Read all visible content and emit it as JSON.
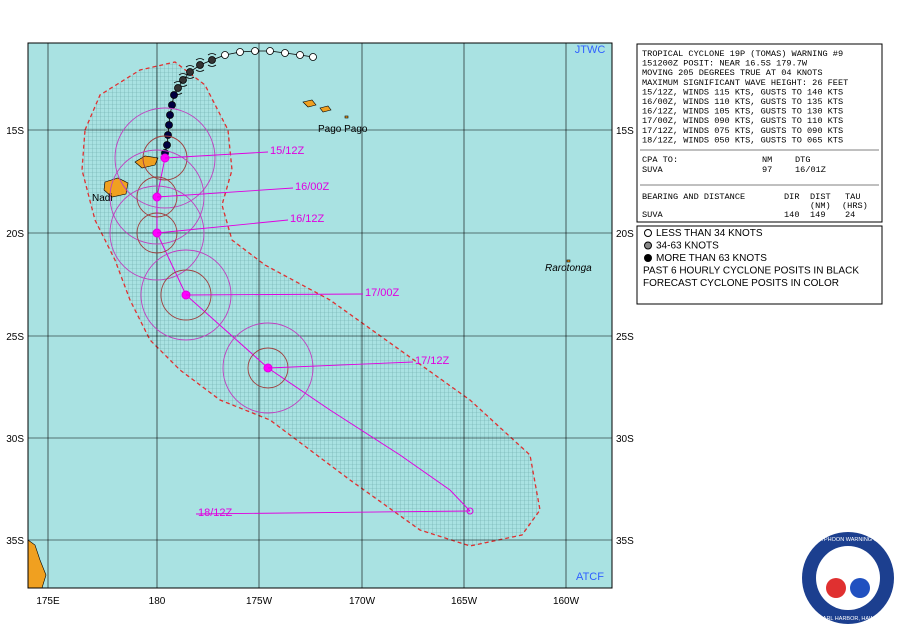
{
  "map": {
    "corner_labels": {
      "top": "JTWC",
      "bottom": "ATCF"
    },
    "lon_labels": [
      "175E",
      "180",
      "175W",
      "170W",
      "165W",
      "160W"
    ],
    "lat_labels": [
      "15S",
      "20S",
      "25S",
      "30S",
      "35S"
    ],
    "places": [
      "Pago Pago",
      "Nadi",
      "Rarotonga"
    ],
    "forecast_labels": [
      "15/12Z",
      "16/00Z",
      "16/12Z",
      "17/00Z",
      "17/12Z",
      "18/12Z"
    ]
  },
  "warning": {
    "lines": [
      "TROPICAL CYCLONE 19P (TOMAS) WARNING #9",
      "151200Z POSIT: NEAR 16.5S 179.7W",
      "MOVING 205 DEGREES TRUE AT 04 KNOTS",
      "MAXIMUM SIGNIFICANT WAVE HEIGHT: 26 FEET",
      "15/12Z, WINDS 115 KTS, GUSTS TO 140 KTS",
      "16/00Z, WINDS 110 KTS, GUSTS TO 135 KTS",
      "16/12Z, WINDS 105 KTS, GUSTS TO 130 KTS",
      "17/00Z, WINDS 090 KTS, GUSTS TO 110 KTS",
      "17/12Z, WINDS 075 KTS, GUSTS TO 090 KTS",
      "18/12Z, WINDS 050 KTS, GUSTS TO 065 KTS"
    ],
    "cpa": {
      "header": [
        "CPA TO:",
        "NM",
        "DTG"
      ],
      "row": [
        "SUVA",
        97,
        "16/01Z"
      ]
    },
    "bearing": {
      "header": [
        "BEARING AND DISTANCE",
        "DIR",
        "DIST",
        "TAU"
      ],
      "subheader": [
        "(NM)",
        "(HRS)"
      ],
      "row": [
        "SUVA",
        140,
        149,
        24
      ]
    }
  },
  "legend": [
    "LESS THAN 34 KNOTS",
    "34-63 KNOTS",
    "MORE THAN 63 KNOTS",
    "PAST 6 HOURLY CYCLONE POSITS IN BLACK",
    "FORECAST CYCLONE POSITS IN COLOR"
  ],
  "logo": {
    "top": "JOINT TYPHOON WARNING CENTER",
    "bottom": "PEARL HARBOR, HAWAII"
  }
}
